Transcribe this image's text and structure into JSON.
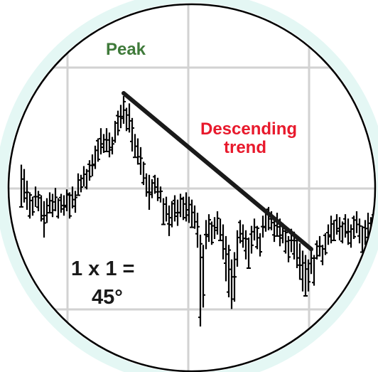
{
  "chart_data": {
    "type": "ohlc",
    "title": "",
    "xlabel": "",
    "ylabel": "",
    "grid": true,
    "colors": {
      "bars": "#000000",
      "trendline": "#1a1a1a",
      "peak_label": "#3f7a3a",
      "trend_label": "#e8192c",
      "ratio_label": "#1a1a1a",
      "grid": "#d2d2d2",
      "lens_border": "#000000",
      "lens_glow": "#e4f7f4"
    },
    "annotations": {
      "peak": "Peak",
      "trend_line1": "Descending",
      "trend_line2": "trend",
      "ratio_line1": "1 x 1 =",
      "ratio_line2": "45°"
    },
    "series": [
      {
        "x": 0,
        "high": 7.1,
        "low": 4.2
      },
      {
        "x": 1,
        "high": 6.8,
        "low": 4.5
      },
      {
        "x": 2,
        "high": 6.0,
        "low": 4.0
      },
      {
        "x": 3,
        "high": 5.2,
        "low": 3.4
      },
      {
        "x": 4,
        "high": 4.9,
        "low": 3.6
      },
      {
        "x": 5,
        "high": 5.6,
        "low": 4.2
      },
      {
        "x": 6,
        "high": 5.3,
        "low": 3.9
      },
      {
        "x": 7,
        "high": 5.0,
        "low": 3.2
      },
      {
        "x": 8,
        "high": 4.6,
        "low": 2.1
      },
      {
        "x": 9,
        "high": 4.8,
        "low": 3.1
      },
      {
        "x": 10,
        "high": 5.2,
        "low": 3.8
      },
      {
        "x": 11,
        "high": 5.1,
        "low": 3.5
      },
      {
        "x": 12,
        "high": 5.5,
        "low": 3.9
      },
      {
        "x": 13,
        "high": 4.8,
        "low": 3.4
      },
      {
        "x": 14,
        "high": 5.1,
        "low": 3.8
      },
      {
        "x": 15,
        "high": 5.0,
        "low": 3.6
      },
      {
        "x": 16,
        "high": 5.4,
        "low": 3.9
      },
      {
        "x": 17,
        "high": 5.2,
        "low": 3.4
      },
      {
        "x": 18,
        "high": 5.6,
        "low": 4.1
      },
      {
        "x": 19,
        "high": 5.3,
        "low": 3.8
      },
      {
        "x": 20,
        "high": 6.5,
        "low": 5.0
      },
      {
        "x": 21,
        "high": 6.4,
        "low": 5.2
      },
      {
        "x": 22,
        "high": 7.0,
        "low": 5.6
      },
      {
        "x": 23,
        "high": 6.8,
        "low": 5.4
      },
      {
        "x": 24,
        "high": 7.4,
        "low": 6.0
      },
      {
        "x": 25,
        "high": 7.8,
        "low": 6.3
      },
      {
        "x": 26,
        "high": 8.4,
        "low": 6.8
      },
      {
        "x": 27,
        "high": 8.9,
        "low": 7.3
      },
      {
        "x": 28,
        "high": 9.6,
        "low": 7.8
      },
      {
        "x": 29,
        "high": 9.2,
        "low": 7.9
      },
      {
        "x": 30,
        "high": 9.6,
        "low": 8.0
      },
      {
        "x": 31,
        "high": 9.3,
        "low": 7.6
      },
      {
        "x": 32,
        "high": 9.0,
        "low": 7.8
      },
      {
        "x": 33,
        "high": 10.1,
        "low": 8.6
      },
      {
        "x": 34,
        "high": 10.8,
        "low": 9.1
      },
      {
        "x": 35,
        "high": 11.2,
        "low": 9.6
      },
      {
        "x": 36,
        "high": 11.8,
        "low": 9.9
      },
      {
        "x": 37,
        "high": 11.0,
        "low": 9.4
      },
      {
        "x": 38,
        "high": 11.3,
        "low": 9.3
      },
      {
        "x": 39,
        "high": 10.3,
        "low": 8.0
      },
      {
        "x": 40,
        "high": 9.2,
        "low": 7.6
      },
      {
        "x": 41,
        "high": 8.9,
        "low": 7.1
      },
      {
        "x": 42,
        "high": 8.3,
        "low": 6.4
      },
      {
        "x": 43,
        "high": 7.3,
        "low": 5.7
      },
      {
        "x": 44,
        "high": 6.5,
        "low": 4.9
      },
      {
        "x": 45,
        "high": 6.4,
        "low": 4.0
      },
      {
        "x": 46,
        "high": 6.1,
        "low": 4.8
      },
      {
        "x": 47,
        "high": 6.4,
        "low": 5.1
      },
      {
        "x": 48,
        "high": 6.2,
        "low": 4.6
      },
      {
        "x": 49,
        "high": 5.6,
        "low": 4.5
      },
      {
        "x": 50,
        "high": 4.8,
        "low": 3.0
      },
      {
        "x": 51,
        "high": 4.9,
        "low": 3.2
      },
      {
        "x": 52,
        "high": 4.3,
        "low": 2.2
      },
      {
        "x": 53,
        "high": 4.6,
        "low": 2.8
      },
      {
        "x": 54,
        "high": 5.0,
        "low": 3.2
      },
      {
        "x": 55,
        "high": 4.7,
        "low": 2.9
      },
      {
        "x": 56,
        "high": 5.1,
        "low": 3.5
      },
      {
        "x": 57,
        "high": 4.9,
        "low": 3.3
      },
      {
        "x": 58,
        "high": 5.2,
        "low": 3.2
      },
      {
        "x": 59,
        "high": 4.9,
        "low": 3.1
      },
      {
        "x": 60,
        "high": 4.7,
        "low": 2.8
      },
      {
        "x": 61,
        "high": 4.3,
        "low": 2.7
      },
      {
        "x": 62,
        "high": 3.8,
        "low": 1.4
      },
      {
        "x": 63,
        "high": 2.3,
        "low": -4.0
      },
      {
        "x": 64,
        "high": 1.6,
        "low": -2.7
      },
      {
        "x": 65,
        "high": 3.3,
        "low": 1.3
      },
      {
        "x": 66,
        "high": 3.7,
        "low": 1.8
      },
      {
        "x": 67,
        "high": 3.2,
        "low": 1.6
      },
      {
        "x": 68,
        "high": 3.5,
        "low": 2.0
      },
      {
        "x": 69,
        "high": 3.9,
        "low": 2.3
      },
      {
        "x": 70,
        "high": 3.4,
        "low": 1.9
      },
      {
        "x": 71,
        "high": 3.0,
        "low": 0.6
      },
      {
        "x": 72,
        "high": 2.2,
        "low": -0.9
      },
      {
        "x": 73,
        "high": 1.6,
        "low": -2.0
      },
      {
        "x": 74,
        "high": 0.6,
        "low": -2.8
      },
      {
        "x": 75,
        "high": 1.1,
        "low": -2.3
      },
      {
        "x": 76,
        "high": 2.6,
        "low": 0.1
      },
      {
        "x": 77,
        "high": 3.3,
        "low": 1.7
      },
      {
        "x": 78,
        "high": 3.0,
        "low": 1.4
      },
      {
        "x": 79,
        "high": 2.6,
        "low": 0.6
      },
      {
        "x": 80,
        "high": 2.1,
        "low": 0.0
      },
      {
        "x": 81,
        "high": 2.9,
        "low": 1.0
      },
      {
        "x": 82,
        "high": 3.4,
        "low": 1.9
      },
      {
        "x": 83,
        "high": 2.9,
        "low": 1.3
      },
      {
        "x": 84,
        "high": 2.4,
        "low": 0.8
      },
      {
        "x": 85,
        "high": 3.6,
        "low": 2.1
      },
      {
        "x": 86,
        "high": 4.0,
        "low": 2.5
      },
      {
        "x": 87,
        "high": 4.2,
        "low": 2.6
      },
      {
        "x": 88,
        "high": 3.9,
        "low": 2.6
      },
      {
        "x": 89,
        "high": 3.4,
        "low": 1.8
      },
      {
        "x": 90,
        "high": 3.8,
        "low": 2.2
      },
      {
        "x": 91,
        "high": 3.4,
        "low": 1.5
      },
      {
        "x": 92,
        "high": 3.1,
        "low": 1.7
      },
      {
        "x": 93,
        "high": 2.6,
        "low": 1.0
      },
      {
        "x": 94,
        "high": 2.2,
        "low": 0.4
      },
      {
        "x": 95,
        "high": 2.7,
        "low": 1.1
      },
      {
        "x": 96,
        "high": 2.5,
        "low": 0.6
      },
      {
        "x": 97,
        "high": 2.1,
        "low": 0.0
      },
      {
        "x": 98,
        "high": 1.7,
        "low": -0.8
      },
      {
        "x": 99,
        "high": 1.2,
        "low": -1.6
      },
      {
        "x": 100,
        "high": 0.9,
        "low": -1.9
      },
      {
        "x": 101,
        "high": 0.6,
        "low": -1.6
      },
      {
        "x": 102,
        "high": 1.4,
        "low": -0.4
      },
      {
        "x": 103,
        "high": 0.9,
        "low": -1.2
      },
      {
        "x": 104,
        "high": 1.9,
        "low": 0.6
      },
      {
        "x": 105,
        "high": 2.2,
        "low": 0.8
      },
      {
        "x": 106,
        "high": 1.6,
        "low": 0.2
      },
      {
        "x": 107,
        "high": 2.4,
        "low": 0.9
      },
      {
        "x": 108,
        "high": 3.0,
        "low": 1.6
      },
      {
        "x": 109,
        "high": 3.6,
        "low": 1.7
      },
      {
        "x": 110,
        "high": 3.3,
        "low": 1.9
      },
      {
        "x": 111,
        "high": 3.7,
        "low": 2.3
      },
      {
        "x": 112,
        "high": 3.5,
        "low": 1.9
      },
      {
        "x": 113,
        "high": 3.2,
        "low": 1.7
      },
      {
        "x": 114,
        "high": 3.7,
        "low": 2.1
      },
      {
        "x": 115,
        "high": 3.4,
        "low": 1.6
      },
      {
        "x": 116,
        "high": 3.0,
        "low": 1.4
      },
      {
        "x": 117,
        "high": 3.6,
        "low": 2.0
      },
      {
        "x": 118,
        "high": 3.9,
        "low": 2.4
      },
      {
        "x": 119,
        "high": 3.4,
        "low": 1.7
      },
      {
        "x": 120,
        "high": 2.9,
        "low": 1.1
      },
      {
        "x": 121,
        "high": 3.3,
        "low": 1.6
      },
      {
        "x": 122,
        "high": 3.8,
        "low": 2.0
      },
      {
        "x": 123,
        "high": 3.5,
        "low": 1.9
      },
      {
        "x": 124,
        "high": 4.0,
        "low": 2.3
      }
    ],
    "trendline": {
      "from": {
        "x": 36,
        "y": 12.0
      },
      "to": {
        "x": 102,
        "y": 1.3
      }
    }
  }
}
